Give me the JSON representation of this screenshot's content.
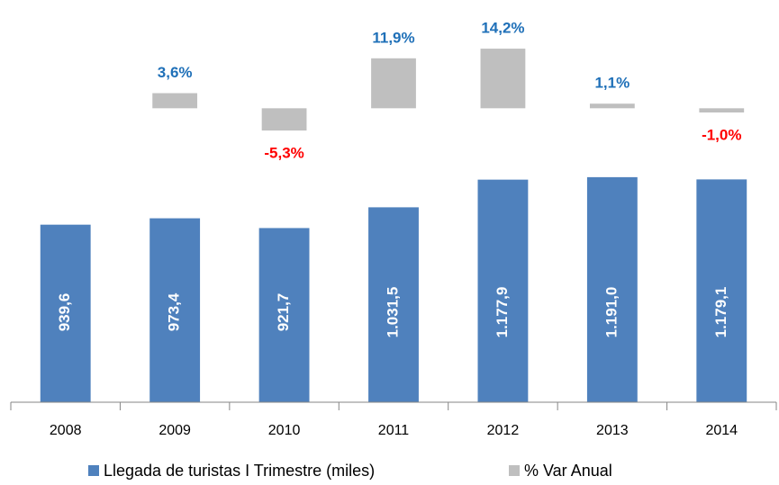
{
  "chart_data": {
    "type": "bar",
    "categories": [
      "2008",
      "2009",
      "2010",
      "2011",
      "2012",
      "2013",
      "2014"
    ],
    "ylim": [
      0,
      2000
    ],
    "y2lim": [
      -70,
      20
    ],
    "series": [
      {
        "name": "Llegada de turistas I Trimestre (miles)",
        "color": "#4f81bd",
        "values": [
          939.6,
          973.4,
          921.7,
          1031.5,
          1177.9,
          1191.0,
          1179.1
        ],
        "value_labels": [
          "939,6",
          "973,4",
          "921,7",
          "1.031,5",
          "1.177,9",
          "1.191,0",
          "1.179,1"
        ],
        "label_color": "#ffffff"
      },
      {
        "name": "% Var Anual",
        "color": "#bfbfbf",
        "axis": "y2",
        "values": [
          null,
          3.6,
          -5.3,
          11.9,
          14.2,
          1.1,
          -1.0
        ],
        "value_labels": [
          null,
          "3,6%",
          "-5,3%",
          "11,9%",
          "14,2%",
          "1,1%",
          "-1,0%"
        ],
        "positive_label_color": "#1f70b8",
        "negative_label_color": "#ff0000"
      }
    ]
  }
}
